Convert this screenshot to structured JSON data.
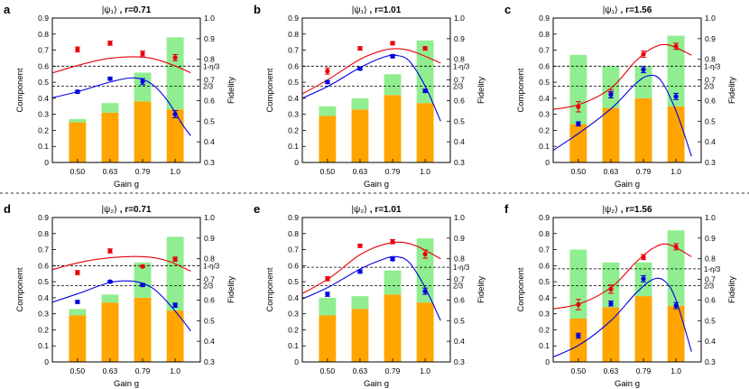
{
  "chart_data": [
    {
      "type": "bar",
      "panel_label": "a",
      "title": "|ψ₁⟩ , r=0.71",
      "ket": "|ψ₁⟩",
      "r_label": ", r=0.71",
      "xlabel": "Gain g",
      "ylabel": "Component",
      "y2label": "Fidelity",
      "categories": [
        "0.50",
        "0.63",
        "0.79",
        "1.0"
      ],
      "ylim": [
        0,
        0.9
      ],
      "y2lim": [
        0.3,
        1.0
      ],
      "yticks": [
        "0",
        "0.1",
        "0.2",
        "0.3",
        "0.4",
        "0.5",
        "0.6",
        "0.7",
        "0.8",
        "0.9"
      ],
      "y2ticks": [
        "0.3",
        "0.4",
        "0.5",
        "0.6",
        "0.7",
        "0.8",
        "0.9",
        "1.0"
      ],
      "series": [
        {
          "name": "orange component",
          "color": "#ffa500",
          "values": [
            0.25,
            0.31,
            0.38,
            0.33
          ]
        },
        {
          "name": "green component",
          "color": "#90ee90",
          "values": [
            0.02,
            0.06,
            0.18,
            0.45
          ]
        }
      ],
      "points_red": {
        "values": [
          0.848,
          0.878,
          0.828,
          0.808
        ],
        "errors": [
          0.012,
          0.01,
          0.012,
          0.015
        ]
      },
      "points_blue": {
        "values": [
          0.643,
          0.706,
          0.692,
          0.534
        ],
        "errors": [
          0.007,
          0.007,
          0.015,
          0.017
        ]
      },
      "curve_red": [
        [
          0.35,
          0.715
        ],
        [
          0.5,
          0.77
        ],
        [
          0.63,
          0.805
        ],
        [
          0.8,
          0.81
        ],
        [
          0.95,
          0.782
        ],
        [
          1.1,
          0.735
        ]
      ],
      "curve_blue": [
        [
          0.35,
          0.6
        ],
        [
          0.5,
          0.643
        ],
        [
          0.63,
          0.69
        ],
        [
          0.75,
          0.71
        ],
        [
          0.85,
          0.68
        ],
        [
          0.95,
          0.6
        ],
        [
          1.05,
          0.48
        ],
        [
          1.1,
          0.43
        ]
      ],
      "reference_lines": [
        {
          "value": 0.6,
          "label": "1-η/3"
        },
        {
          "value": 0.476,
          "label": "2/3"
        }
      ]
    },
    {
      "type": "bar",
      "panel_label": "b",
      "title": "|ψ₁⟩ , r=1.01",
      "ket": "|ψ₁⟩",
      "r_label": ", r=1.01",
      "xlabel": "Gain g",
      "ylabel": "Component",
      "y2label": "Fidelity",
      "categories": [
        "0.50",
        "0.63",
        "0.79",
        "1.0"
      ],
      "ylim": [
        0,
        0.9
      ],
      "y2lim": [
        0.3,
        1.0
      ],
      "yticks": [
        "0",
        "0.1",
        "0.2",
        "0.3",
        "0.4",
        "0.5",
        "0.6",
        "0.7",
        "0.8",
        "0.9"
      ],
      "y2ticks": [
        "0.3",
        "0.4",
        "0.5",
        "0.6",
        "0.7",
        "0.8",
        "0.9",
        "1.0"
      ],
      "series": [
        {
          "name": "orange component",
          "color": "#ffa500",
          "values": [
            0.29,
            0.33,
            0.42,
            0.37
          ]
        },
        {
          "name": "green component",
          "color": "#90ee90",
          "values": [
            0.06,
            0.07,
            0.13,
            0.39
          ]
        }
      ],
      "points_red": {
        "values": [
          0.743,
          0.853,
          0.878,
          0.853
        ],
        "errors": [
          0.015,
          0.008,
          0.008,
          0.008
        ]
      },
      "points_blue": {
        "values": [
          0.69,
          0.755,
          0.815,
          0.647
        ],
        "errors": [
          0.007,
          0.007,
          0.008,
          0.008
        ]
      },
      "curve_red": [
        [
          0.35,
          0.6
        ],
        [
          0.5,
          0.7
        ],
        [
          0.63,
          0.8
        ],
        [
          0.75,
          0.845
        ],
        [
          0.85,
          0.85
        ],
        [
          0.95,
          0.83
        ],
        [
          1.1,
          0.782
        ]
      ],
      "curve_blue": [
        [
          0.35,
          0.585
        ],
        [
          0.5,
          0.668
        ],
        [
          0.63,
          0.76
        ],
        [
          0.75,
          0.812
        ],
        [
          0.82,
          0.818
        ],
        [
          0.9,
          0.79
        ],
        [
          1.0,
          0.67
        ],
        [
          1.1,
          0.5
        ]
      ],
      "reference_lines": [
        {
          "value": 0.6,
          "label": "1-η/3"
        },
        {
          "value": 0.476,
          "label": "2/3"
        }
      ]
    },
    {
      "type": "bar",
      "panel_label": "c",
      "title": "|ψ₁⟩ , r=1.56",
      "ket": "|ψ₁⟩",
      "r_label": ", r=1.56",
      "xlabel": "Gain g",
      "ylabel": "Component",
      "y2label": "Fidelity",
      "categories": [
        "0.50",
        "0.63",
        "0.79",
        "1.0"
      ],
      "ylim": [
        0,
        0.9
      ],
      "y2lim": [
        0.3,
        1.0
      ],
      "yticks": [
        "0",
        "0.1",
        "0.2",
        "0.3",
        "0.4",
        "0.5",
        "0.6",
        "0.7",
        "0.8",
        "0.9"
      ],
      "y2ticks": [
        "0.3",
        "0.4",
        "0.5",
        "0.6",
        "0.7",
        "0.8",
        "0.9",
        "1.0"
      ],
      "series": [
        {
          "name": "orange component",
          "color": "#ffa500",
          "values": [
            0.24,
            0.34,
            0.4,
            0.35
          ]
        },
        {
          "name": "green component",
          "color": "#90ee90",
          "values": [
            0.43,
            0.26,
            0.2,
            0.44
          ]
        }
      ],
      "points_red": {
        "values": [
          0.57,
          0.633,
          0.825,
          0.863
        ],
        "errors": [
          0.025,
          0.02,
          0.015,
          0.015
        ]
      },
      "points_blue": {
        "values": [
          0.487,
          0.628,
          0.75,
          0.62
        ],
        "errors": [
          0.01,
          0.015,
          0.015,
          0.015
        ]
      },
      "curve_red": [
        [
          0.35,
          0.55
        ],
        [
          0.5,
          0.58
        ],
        [
          0.63,
          0.66
        ],
        [
          0.75,
          0.79
        ],
        [
          0.85,
          0.855
        ],
        [
          0.95,
          0.87
        ],
        [
          1.1,
          0.82
        ]
      ],
      "curve_blue": [
        [
          0.35,
          0.32
        ],
        [
          0.5,
          0.44
        ],
        [
          0.63,
          0.56
        ],
        [
          0.75,
          0.68
        ],
        [
          0.82,
          0.72
        ],
        [
          0.9,
          0.7
        ],
        [
          1.0,
          0.55
        ],
        [
          1.1,
          0.33
        ]
      ],
      "reference_lines": [
        {
          "value": 0.6,
          "label": "1-η/3"
        },
        {
          "value": 0.476,
          "label": "2/3"
        }
      ]
    },
    {
      "type": "bar",
      "panel_label": "d",
      "title": "|ψ₂⟩ , r=0.71",
      "ket": "|ψ₂⟩",
      "r_label": ", r=0.71",
      "xlabel": "Gain g",
      "ylabel": "Component",
      "y2label": "Fidelity",
      "categories": [
        "0.50",
        "0.63",
        "0.79",
        "1.0"
      ],
      "ylim": [
        0,
        0.9
      ],
      "y2lim": [
        0.3,
        1.0
      ],
      "yticks": [
        "0",
        "0.1",
        "0.2",
        "0.3",
        "0.4",
        "0.5",
        "0.6",
        "0.7",
        "0.8",
        "0.9"
      ],
      "y2ticks": [
        "0.3",
        "0.4",
        "0.5",
        "0.6",
        "0.7",
        "0.8",
        "0.9",
        "1.0"
      ],
      "series": [
        {
          "name": "orange component",
          "color": "#ffa500",
          "values": [
            0.29,
            0.37,
            0.4,
            0.32
          ]
        },
        {
          "name": "green component",
          "color": "#90ee90",
          "values": [
            0.04,
            0.05,
            0.22,
            0.46
          ]
        }
      ],
      "points_red": {
        "values": [
          0.733,
          0.838,
          0.763,
          0.798
        ],
        "errors": [
          0.01,
          0.01,
          0.005,
          0.01
        ]
      },
      "points_blue": {
        "values": [
          0.591,
          0.689,
          0.673,
          0.575
        ],
        "errors": [
          0.007,
          0.005,
          0.007,
          0.01
        ]
      },
      "curve_red": [
        [
          0.35,
          0.73
        ],
        [
          0.5,
          0.78
        ],
        [
          0.63,
          0.805
        ],
        [
          0.8,
          0.81
        ],
        [
          0.95,
          0.79
        ],
        [
          1.1,
          0.74
        ]
      ],
      "curve_blue": [
        [
          0.35,
          0.57
        ],
        [
          0.5,
          0.63
        ],
        [
          0.63,
          0.685
        ],
        [
          0.75,
          0.69
        ],
        [
          0.85,
          0.66
        ],
        [
          0.95,
          0.59
        ],
        [
          1.05,
          0.5
        ],
        [
          1.1,
          0.45
        ]
      ],
      "reference_lines": [
        {
          "value": 0.6,
          "label": "1-η/3"
        },
        {
          "value": 0.476,
          "label": "2/3"
        }
      ]
    },
    {
      "type": "bar",
      "panel_label": "e",
      "title": "|ψ₂⟩ , r=1.01",
      "ket": "|ψ₂⟩",
      "r_label": ", r=1.01",
      "xlabel": "Gain g",
      "ylabel": "Component",
      "y2label": "Fidelity",
      "categories": [
        "0.50",
        "0.63",
        "0.79",
        "1.0"
      ],
      "ylim": [
        0,
        0.9
      ],
      "y2lim": [
        0.3,
        1.0
      ],
      "yticks": [
        "0",
        "0.1",
        "0.2",
        "0.3",
        "0.4",
        "0.5",
        "0.6",
        "0.7",
        "0.8",
        "0.9"
      ],
      "y2ticks": [
        "0.3",
        "0.4",
        "0.5",
        "0.6",
        "0.7",
        "0.8",
        "0.9",
        "1.0"
      ],
      "series": [
        {
          "name": "orange component",
          "color": "#ffa500",
          "values": [
            0.29,
            0.33,
            0.42,
            0.37
          ]
        },
        {
          "name": "green component",
          "color": "#90ee90",
          "values": [
            0.11,
            0.08,
            0.15,
            0.4
          ]
        }
      ],
      "points_red": {
        "values": [
          0.703,
          0.863,
          0.883,
          0.823
        ],
        "errors": [
          0.01,
          0.008,
          0.01,
          0.02
        ]
      },
      "points_blue": {
        "values": [
          0.628,
          0.738,
          0.798,
          0.643
        ],
        "errors": [
          0.01,
          0.008,
          0.007,
          0.015
        ]
      },
      "curve_red": [
        [
          0.35,
          0.6
        ],
        [
          0.5,
          0.7
        ],
        [
          0.63,
          0.82
        ],
        [
          0.75,
          0.87
        ],
        [
          0.85,
          0.88
        ],
        [
          0.95,
          0.86
        ],
        [
          1.1,
          0.8
        ]
      ],
      "curve_blue": [
        [
          0.35,
          0.58
        ],
        [
          0.5,
          0.66
        ],
        [
          0.63,
          0.75
        ],
        [
          0.75,
          0.8
        ],
        [
          0.82,
          0.81
        ],
        [
          0.9,
          0.78
        ],
        [
          1.0,
          0.66
        ],
        [
          1.1,
          0.5
        ]
      ],
      "reference_lines": [
        {
          "value": 0.59,
          "label": "1-η/3"
        },
        {
          "value": 0.476,
          "label": "2/3"
        }
      ]
    },
    {
      "type": "bar",
      "panel_label": "f",
      "title": "|ψ₂⟩ , r=1.56",
      "ket": "|ψ₂⟩",
      "r_label": ", r=1.56",
      "xlabel": "Gain g",
      "ylabel": "Component",
      "y2label": "Fidelity",
      "categories": [
        "0.50",
        "0.63",
        "0.79",
        "1.0"
      ],
      "ylim": [
        0,
        0.9
      ],
      "y2lim": [
        0.3,
        1.0
      ],
      "yticks": [
        "0",
        "0.1",
        "0.2",
        "0.3",
        "0.4",
        "0.5",
        "0.6",
        "0.7",
        "0.8",
        "0.9"
      ],
      "y2ticks": [
        "0.3",
        "0.4",
        "0.5",
        "0.6",
        "0.7",
        "0.8",
        "0.9",
        "1.0"
      ],
      "series": [
        {
          "name": "orange component",
          "color": "#ffa500",
          "values": [
            0.27,
            0.34,
            0.41,
            0.35
          ]
        },
        {
          "name": "green component",
          "color": "#90ee90",
          "values": [
            0.43,
            0.28,
            0.21,
            0.47
          ]
        }
      ],
      "points_red": {
        "values": [
          0.578,
          0.653,
          0.808,
          0.858
        ],
        "errors": [
          0.025,
          0.02,
          0.012,
          0.015
        ]
      },
      "points_blue": {
        "values": [
          0.427,
          0.583,
          0.703,
          0.573
        ],
        "errors": [
          0.012,
          0.012,
          0.015,
          0.015
        ]
      },
      "curve_red": [
        [
          0.35,
          0.55
        ],
        [
          0.5,
          0.58
        ],
        [
          0.63,
          0.66
        ],
        [
          0.75,
          0.78
        ],
        [
          0.85,
          0.85
        ],
        [
          0.95,
          0.87
        ],
        [
          1.1,
          0.81
        ]
      ],
      "curve_blue": [
        [
          0.35,
          0.3
        ],
        [
          0.5,
          0.38
        ],
        [
          0.63,
          0.5
        ],
        [
          0.75,
          0.63
        ],
        [
          0.85,
          0.7
        ],
        [
          0.93,
          0.69
        ],
        [
          1.0,
          0.6
        ],
        [
          1.1,
          0.35
        ]
      ],
      "reference_lines": [
        {
          "value": 0.58,
          "label": "1-η/3"
        },
        {
          "value": 0.476,
          "label": "2/3"
        }
      ]
    }
  ],
  "colors": {
    "orange": "#ffa500",
    "green": "#90ee90",
    "red": "#e8000b",
    "blue": "#0000e0",
    "axis": "#000000"
  }
}
